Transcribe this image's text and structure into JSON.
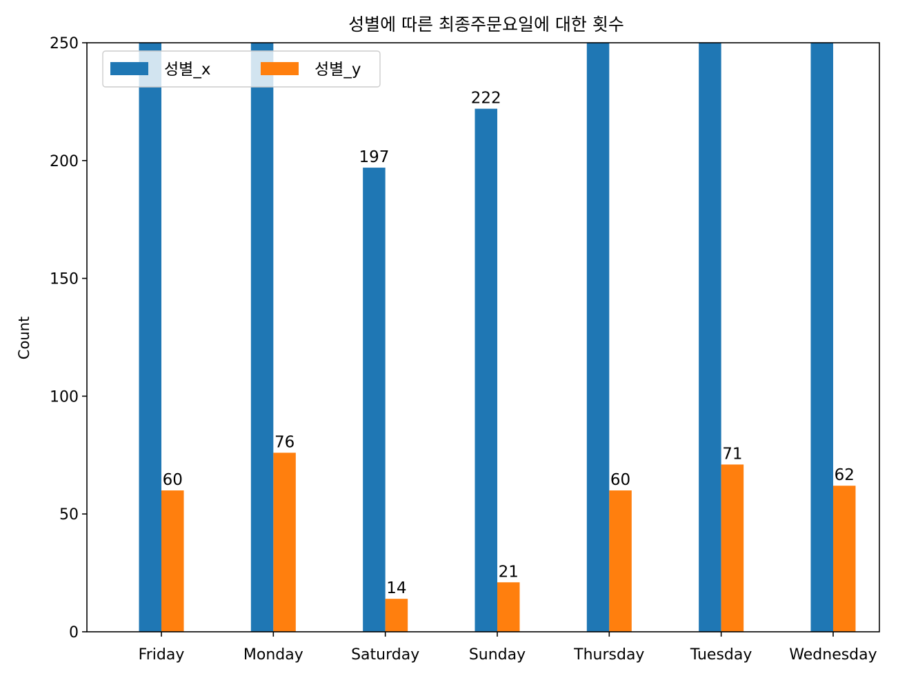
{
  "chart_data": {
    "type": "bar",
    "title": "성별에 따른 최종주문요일에 대한 횟수",
    "xlabel": "",
    "ylabel": "Count",
    "ylim": [
      0,
      250
    ],
    "yticks": [
      0,
      50,
      100,
      150,
      200,
      250
    ],
    "categories": [
      "Friday",
      "Monday",
      "Saturday",
      "Sunday",
      "Thursday",
      "Tuesday",
      "Wednesday"
    ],
    "series": [
      {
        "name": "성별_x",
        "color": "#1f77b4",
        "values": [
          null,
          null,
          197,
          222,
          null,
          null,
          null
        ],
        "labels": [
          "",
          "",
          "197",
          "222",
          "",
          "",
          ""
        ]
      },
      {
        "name": "성별_y",
        "color": "#ff7f0e",
        "values": [
          60,
          76,
          14,
          21,
          60,
          71,
          62
        ],
        "labels": [
          "60",
          "76",
          "14",
          "21",
          "60",
          "71",
          "62"
        ]
      }
    ],
    "legend": "top-left",
    "grid": false
  }
}
